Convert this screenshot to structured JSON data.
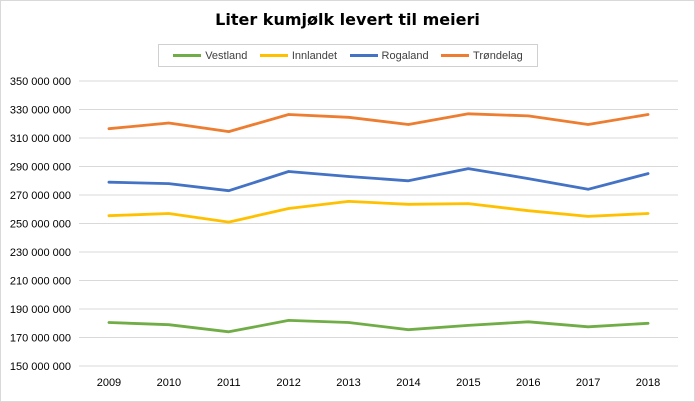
{
  "chart_data": {
    "type": "line",
    "title": "Liter kumjølk levert til meieri",
    "xlabel": "",
    "ylabel": "",
    "categories": [
      "2009",
      "2010",
      "2011",
      "2012",
      "2013",
      "2014",
      "2015",
      "2016",
      "2017",
      "2018"
    ],
    "ylim": [
      150000000,
      350000000
    ],
    "yticks": [
      150000000,
      170000000,
      190000000,
      210000000,
      230000000,
      250000000,
      270000000,
      290000000,
      310000000,
      330000000,
      350000000
    ],
    "ytick_labels": [
      "150 000 000",
      "170 000 000",
      "190 000 000",
      "210 000 000",
      "230 000 000",
      "250 000 000",
      "270 000 000",
      "290 000 000",
      "310 000 000",
      "330 000 000",
      "350 000 000"
    ],
    "grid": true,
    "legend_position": "top",
    "series": [
      {
        "name": "Vestland",
        "color": "#70ad47",
        "values": [
          180500000,
          179000000,
          174000000,
          182000000,
          180500000,
          175500000,
          178500000,
          181000000,
          177500000,
          180000000
        ]
      },
      {
        "name": "Innlandet",
        "color": "#ffc000",
        "values": [
          255500000,
          257000000,
          251000000,
          260500000,
          265500000,
          263500000,
          264000000,
          259000000,
          255000000,
          257000000
        ]
      },
      {
        "name": "Rogaland",
        "color": "#4472c4",
        "values": [
          279000000,
          278000000,
          273000000,
          286500000,
          283000000,
          280000000,
          288500000,
          281500000,
          274000000,
          285000000
        ]
      },
      {
        "name": "Trøndelag",
        "color": "#ed7d31",
        "values": [
          316500000,
          320500000,
          314500000,
          326500000,
          324500000,
          319500000,
          327000000,
          325500000,
          319500000,
          326500000
        ]
      }
    ]
  }
}
